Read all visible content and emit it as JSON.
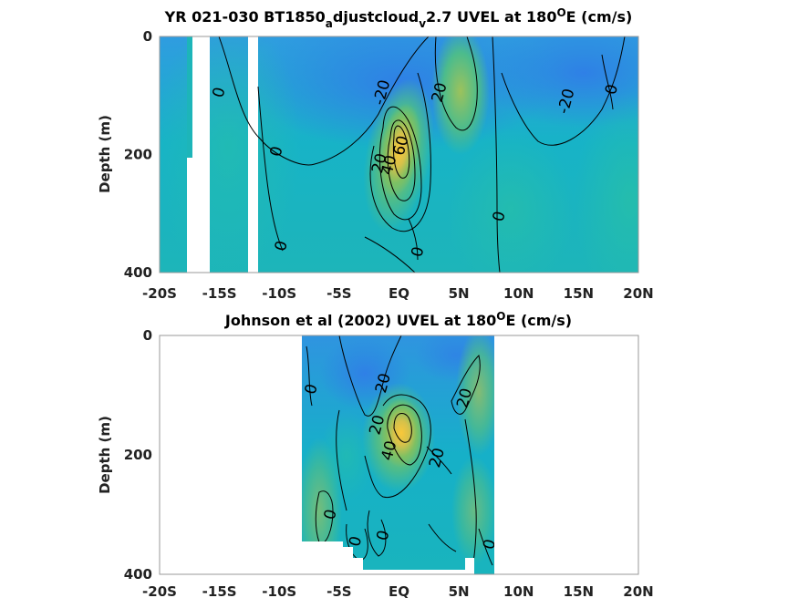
{
  "chart_data": [
    {
      "type": "heatmap",
      "title": {
        "pre": "YR 021-030 BT1850",
        "sub1": "a",
        "mid": "djustcloud",
        "sub2": "v",
        "mid2": "2.7 UVEL at 180",
        "sup": "O",
        "post": "E (cm/s)"
      },
      "ylabel": "Depth (m)",
      "xlim": [
        -20,
        20
      ],
      "ylim": [
        400,
        0
      ],
      "x_ticks": [
        "-20S",
        "-15S",
        "-10S",
        "-5S",
        "EQ",
        "5N",
        "10N",
        "15N",
        "20N"
      ],
      "y_ticks": [
        "0",
        "200",
        "400"
      ],
      "missing_columns_lat": [
        [
          -17.6,
          -16.2
        ],
        [
          -12.4,
          -11.6
        ]
      ],
      "features": [
        {
          "name": "undercurrent core",
          "lat": 0.2,
          "depth": 175,
          "value": 60
        },
        {
          "name": "westward surface flow",
          "lat": -2,
          "depth": 60,
          "value": -20
        },
        {
          "name": "NECC",
          "lat": 5.5,
          "depth": 80,
          "value": 25
        },
        {
          "name": "westward flow north",
          "lat": 14,
          "depth": 80,
          "value": -20
        }
      ],
      "contour_labels": [
        {
          "text": "0",
          "lat": -15,
          "depth": 95
        },
        {
          "text": "0",
          "lat": -10.2,
          "depth": 195
        },
        {
          "text": "0",
          "lat": -9.8,
          "depth": 355
        },
        {
          "text": "-20",
          "lat": -1.4,
          "depth": 95
        },
        {
          "text": "20",
          "lat": -1.6,
          "depth": 215
        },
        {
          "text": "40",
          "lat": -0.8,
          "depth": 218
        },
        {
          "text": "60",
          "lat": 0.2,
          "depth": 185
        },
        {
          "text": "20",
          "lat": 3.4,
          "depth": 95
        },
        {
          "text": "0",
          "lat": 1.6,
          "depth": 365
        },
        {
          "text": "0",
          "lat": 8.4,
          "depth": 305
        },
        {
          "text": "-20",
          "lat": 14,
          "depth": 110
        },
        {
          "text": "0",
          "lat": 17.8,
          "depth": 90
        }
      ]
    },
    {
      "type": "heatmap",
      "title": {
        "pre": "Johnson et al (2002) UVEL at 180",
        "sup": "O",
        "post": "E (cm/s)"
      },
      "ylabel": "Depth (m)",
      "xlim": [
        -20,
        20
      ],
      "ylim": [
        400,
        0
      ],
      "x_ticks": [
        "-20S",
        "-15S",
        "-10S",
        "-5S",
        "EQ",
        "5N",
        "10N",
        "15N",
        "20N"
      ],
      "y_ticks": [
        "0",
        "200",
        "400"
      ],
      "data_lat_range": [
        -8,
        8
      ],
      "features": [
        {
          "name": "undercurrent core",
          "lat": 0.3,
          "depth": 170,
          "value": 55
        },
        {
          "name": "westward surface flow",
          "lat": -2.5,
          "depth": 60,
          "value": -20
        },
        {
          "name": "eastward flow north",
          "lat": 6,
          "depth": 90,
          "value": 25
        }
      ],
      "contour_labels": [
        {
          "text": "0",
          "lat": -7.3,
          "depth": 90
        },
        {
          "text": "20",
          "lat": -1.3,
          "depth": 80
        },
        {
          "text": "20",
          "lat": -1.8,
          "depth": 150
        },
        {
          "text": "40",
          "lat": -0.8,
          "depth": 193
        },
        {
          "text": "20",
          "lat": 5.5,
          "depth": 105
        },
        {
          "text": "20",
          "lat": 3.2,
          "depth": 205
        },
        {
          "text": "0",
          "lat": -5.7,
          "depth": 300
        },
        {
          "text": "0",
          "lat": -3.6,
          "depth": 345
        },
        {
          "text": "0",
          "lat": -1.3,
          "depth": 335
        },
        {
          "text": "0",
          "lat": 7.6,
          "depth": 350
        }
      ]
    }
  ]
}
